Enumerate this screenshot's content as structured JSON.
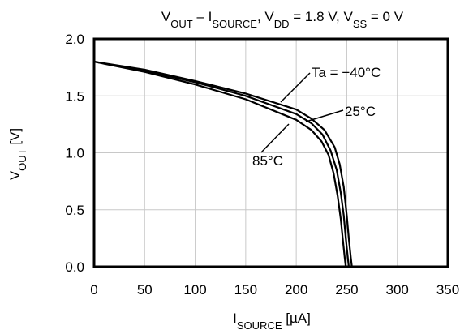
{
  "chart_data": {
    "type": "line",
    "title": {
      "parts": [
        {
          "text": "V"
        },
        {
          "text": "OUT",
          "sub": true
        },
        {
          "text": " – I"
        },
        {
          "text": "SOURCE",
          "sub": true
        },
        {
          "text": ", V"
        },
        {
          "text": "DD",
          "sub": true
        },
        {
          "text": " = 1.8 V, V"
        },
        {
          "text": "SS",
          "sub": true
        },
        {
          "text": " = 0 V"
        }
      ]
    },
    "xlabel": {
      "parts": [
        {
          "text": "I"
        },
        {
          "text": "SOURCE",
          "sub": true
        },
        {
          "text": " [µA]"
        }
      ]
    },
    "ylabel": {
      "parts": [
        {
          "text": "V"
        },
        {
          "text": "OUT",
          "sub": true
        },
        {
          "text": " [V]"
        }
      ]
    },
    "xlim": [
      0,
      350
    ],
    "ylim": [
      0,
      2.0
    ],
    "x_ticks": [
      {
        "value": 0,
        "label": "0"
      },
      {
        "value": 50,
        "label": "50"
      },
      {
        "value": 100,
        "label": "100"
      },
      {
        "value": 150,
        "label": "150"
      },
      {
        "value": 200,
        "label": "200"
      },
      {
        "value": 250,
        "label": "250"
      },
      {
        "value": 300,
        "label": "300"
      },
      {
        "value": 350,
        "label": "350"
      }
    ],
    "y_ticks": [
      {
        "value": 0,
        "label": "0.0"
      },
      {
        "value": 0.5,
        "label": "0.5"
      },
      {
        "value": 1.0,
        "label": "1.0"
      },
      {
        "value": 1.5,
        "label": "1.5"
      },
      {
        "value": 2.0,
        "label": "2.0"
      }
    ],
    "grid": true,
    "series": [
      {
        "name": "Ta = −40°C",
        "x": [
          0,
          50,
          100,
          150,
          200,
          215,
          228,
          238,
          243,
          247,
          250,
          252,
          254,
          255
        ],
        "y": [
          1.8,
          1.73,
          1.63,
          1.52,
          1.38,
          1.3,
          1.2,
          1.05,
          0.9,
          0.7,
          0.45,
          0.25,
          0.08,
          0.0
        ]
      },
      {
        "name": "25°C",
        "x": [
          0,
          50,
          100,
          150,
          200,
          215,
          226,
          234,
          240,
          244,
          247,
          249,
          251,
          252
        ],
        "y": [
          1.8,
          1.72,
          1.62,
          1.5,
          1.34,
          1.26,
          1.16,
          1.02,
          0.85,
          0.65,
          0.45,
          0.25,
          0.08,
          0.0
        ]
      },
      {
        "name": "85°C",
        "x": [
          0,
          50,
          100,
          150,
          200,
          215,
          225,
          232,
          237,
          241,
          244,
          246,
          248,
          249
        ],
        "y": [
          1.8,
          1.71,
          1.6,
          1.47,
          1.29,
          1.2,
          1.1,
          0.98,
          0.82,
          0.62,
          0.42,
          0.25,
          0.08,
          0.0
        ]
      }
    ],
    "annotations": [
      {
        "text": "Ta = −40°C",
        "series": "Ta = −40°C"
      },
      {
        "text": "25°C",
        "series": "25°C"
      },
      {
        "text": "85°C",
        "series": "85°C"
      }
    ]
  }
}
